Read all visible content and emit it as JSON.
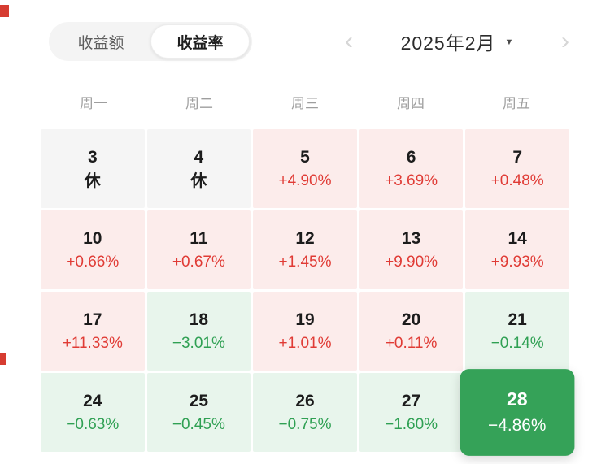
{
  "colors": {
    "up_bg": "#fceceb",
    "up_text": "#e03b35",
    "down_bg": "#e8f5ec",
    "down_text": "#2fa053",
    "rest_bg": "#f5f5f5",
    "selected_bg": "#35a258",
    "accent_red": "#d63c31"
  },
  "tabs": [
    {
      "label": "收益额",
      "active": false
    },
    {
      "label": "收益率",
      "active": true
    }
  ],
  "month_selector": {
    "label": "2025年2月",
    "prev_icon": "‹",
    "next_icon": "›",
    "caret_icon": "▼"
  },
  "weekdays": [
    "周一",
    "周二",
    "周三",
    "周四",
    "周五"
  ],
  "calendar": {
    "cells": [
      {
        "date": "3",
        "value": "休",
        "type": "rest"
      },
      {
        "date": "4",
        "value": "休",
        "type": "rest"
      },
      {
        "date": "5",
        "value": "+4.90%",
        "type": "up"
      },
      {
        "date": "6",
        "value": "+3.69%",
        "type": "up"
      },
      {
        "date": "7",
        "value": "+0.48%",
        "type": "up"
      },
      {
        "date": "10",
        "value": "+0.66%",
        "type": "up"
      },
      {
        "date": "11",
        "value": "+0.67%",
        "type": "up"
      },
      {
        "date": "12",
        "value": "+1.45%",
        "type": "up"
      },
      {
        "date": "13",
        "value": "+9.90%",
        "type": "up"
      },
      {
        "date": "14",
        "value": "+9.93%",
        "type": "up"
      },
      {
        "date": "17",
        "value": "+11.33%",
        "type": "up"
      },
      {
        "date": "18",
        "value": "−3.01%",
        "type": "down"
      },
      {
        "date": "19",
        "value": "+1.01%",
        "type": "up"
      },
      {
        "date": "20",
        "value": "+0.11%",
        "type": "up"
      },
      {
        "date": "21",
        "value": "−0.14%",
        "type": "down"
      },
      {
        "date": "24",
        "value": "−0.63%",
        "type": "down"
      },
      {
        "date": "25",
        "value": "−0.45%",
        "type": "down"
      },
      {
        "date": "26",
        "value": "−0.75%",
        "type": "down"
      },
      {
        "date": "27",
        "value": "−1.60%",
        "type": "down"
      },
      {
        "date": "28",
        "value": "−4.86%",
        "type": "down-selected"
      }
    ]
  }
}
